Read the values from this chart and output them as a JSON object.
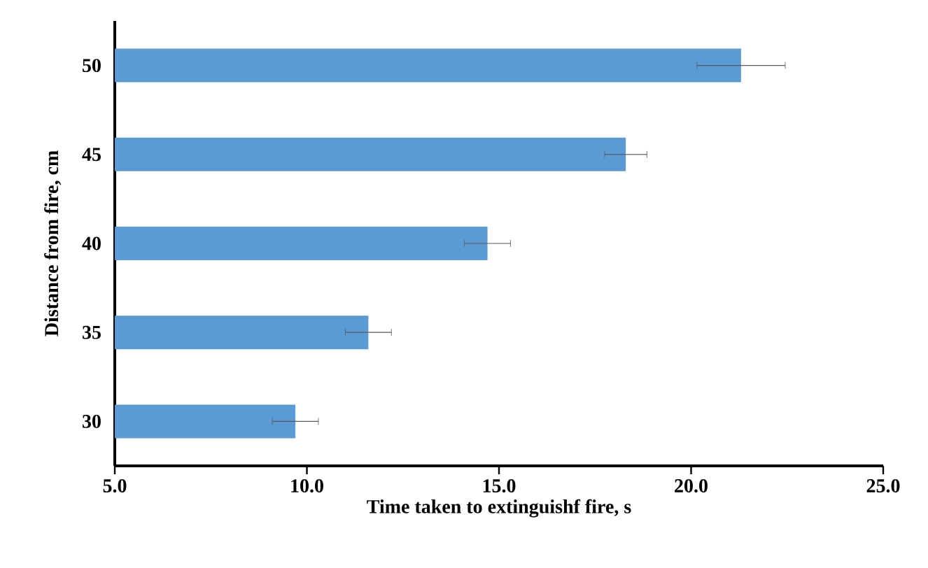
{
  "chart_data": {
    "type": "bar",
    "orientation": "horizontal",
    "xlabel": "Time taken to extinguishf fire, s",
    "ylabel": "Distance from fire, cm",
    "categories": [
      "50",
      "45",
      "40",
      "35",
      "30"
    ],
    "values": [
      21.3,
      18.3,
      14.7,
      11.6,
      9.7
    ],
    "errors": [
      1.15,
      0.55,
      0.6,
      0.6,
      0.6
    ],
    "color": "#5b9bd5",
    "xlim": [
      5,
      25
    ],
    "xticks": [
      {
        "value": 5,
        "label": "5.0"
      },
      {
        "value": 10,
        "label": "10.0"
      },
      {
        "value": 15,
        "label": "15.0"
      },
      {
        "value": 20,
        "label": "20.0"
      },
      {
        "value": 25,
        "label": "25.0"
      }
    ],
    "grid": false
  }
}
